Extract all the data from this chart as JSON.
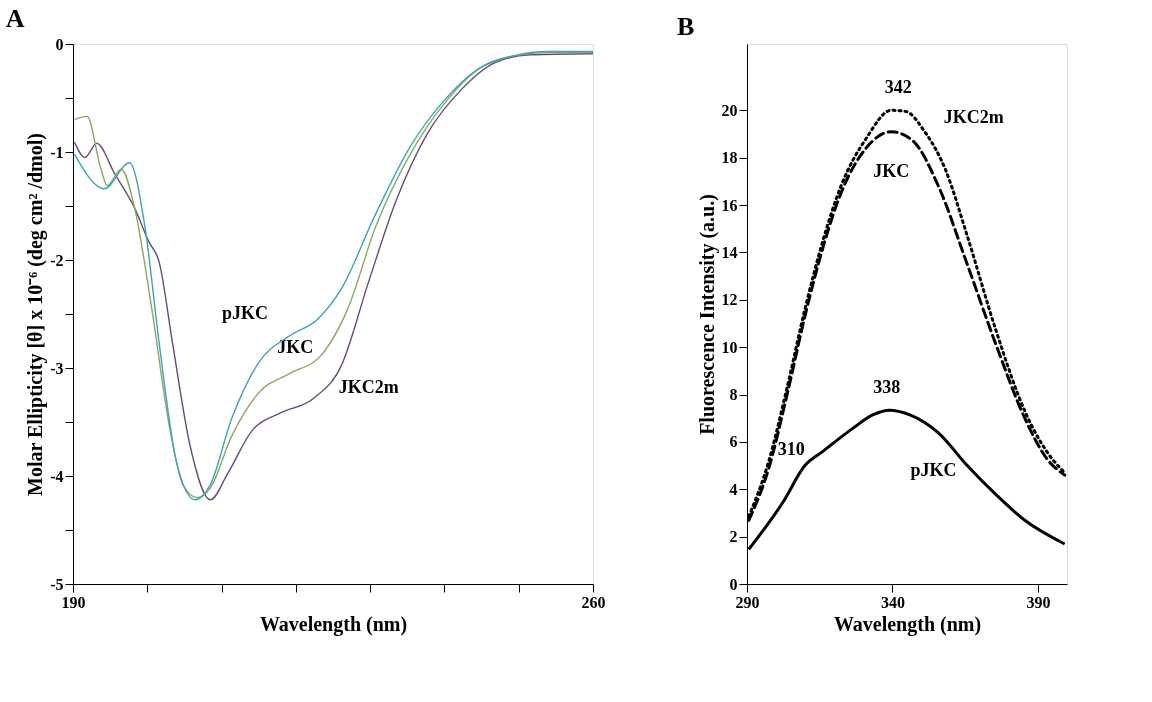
{
  "chart_data": [
    {
      "type": "line",
      "title": "A",
      "xlabel": "Wavelength (nm)",
      "ylabel": "Molar Ellipticity [θ] x 10⁻⁶ (deg cm² /dmol)",
      "xlim": [
        190,
        260
      ],
      "ylim": [
        -5,
        0
      ],
      "xticks": [
        190,
        {
          "value": 200,
          "label": null
        },
        {
          "value": 210,
          "label": null
        },
        {
          "value": 220,
          "label": null
        },
        {
          "value": 230,
          "label": null
        },
        {
          "value": 240,
          "label": null
        },
        {
          "value": 250,
          "label": null
        },
        260
      ],
      "yticks": [
        -5,
        {
          "value": -4.5,
          "label": null
        },
        -4,
        {
          "value": -3.5,
          "label": null
        },
        -3,
        {
          "value": -2.5,
          "label": null
        },
        -2,
        {
          "value": -1.5,
          "label": null
        },
        -1,
        {
          "value": -0.5,
          "label": null
        },
        0
      ],
      "grid": false,
      "legend": false,
      "line_style": "solid",
      "series": [
        {
          "name": "pJKC",
          "color": "#3aa6b5",
          "x": [
            190.2,
            194.2,
            197.6,
            199.7,
            201.6,
            203.9,
            206.4,
            208.5,
            211.3,
            215,
            219.2,
            222.9,
            226.1,
            230.7,
            235.4,
            240,
            244.6,
            249.3,
            253.9,
            260
          ],
          "values": [
            -1.02,
            -1.34,
            -1.1,
            -1.7,
            -2.77,
            -3.86,
            -4.22,
            -4.08,
            -3.48,
            -2.95,
            -2.7,
            -2.55,
            -2.27,
            -1.58,
            -0.95,
            -0.52,
            -0.23,
            -0.11,
            -0.07,
            -0.07
          ]
        },
        {
          "name": "JKC",
          "color": "#8aa860",
          "x": [
            190.2,
            191.9,
            193.7,
            194.6,
            196.5,
            198.3,
            200.6,
            203,
            204.8,
            206.7,
            208.5,
            211.3,
            215,
            219.2,
            223.3,
            227,
            230.7,
            235.4,
            240,
            244.6,
            249.3,
            253.9,
            260
          ],
          "values": [
            -0.7,
            -0.67,
            -1.14,
            -1.31,
            -1.16,
            -1.52,
            -2.45,
            -3.55,
            -4.08,
            -4.2,
            -4.11,
            -3.64,
            -3.23,
            -3.05,
            -2.89,
            -2.45,
            -1.7,
            -1.02,
            -0.55,
            -0.23,
            -0.11,
            -0.08,
            -0.08
          ]
        },
        {
          "name": "JKC2m",
          "color": "#6a4a7a",
          "x": [
            190.2,
            191.6,
            193.2,
            195.6,
            198.3,
            200.2,
            201.6,
            203.4,
            205.7,
            208.5,
            210.8,
            214.1,
            217.8,
            222.4,
            226.1,
            229.8,
            233.5,
            237.7,
            242.3,
            246.9,
            251.6,
            260
          ],
          "values": [
            -0.91,
            -1.05,
            -0.92,
            -1.2,
            -1.52,
            -1.83,
            -2.02,
            -2.77,
            -3.7,
            -4.22,
            -3.98,
            -3.58,
            -3.42,
            -3.28,
            -2.98,
            -2.2,
            -1.45,
            -0.83,
            -0.42,
            -0.17,
            -0.1,
            -0.09
          ]
        }
      ]
    },
    {
      "type": "line",
      "title": "B",
      "xlabel": "Wavelength (nm)",
      "ylabel": "Fluorescence Intensity (a.u.)",
      "xlim": [
        290,
        400
      ],
      "ylim": [
        0,
        22.8
      ],
      "xticks": [
        290,
        340,
        390
      ],
      "yticks": [
        0,
        2,
        4,
        6,
        8,
        10,
        12,
        14,
        16,
        18,
        20
      ],
      "grid": false,
      "legend": false,
      "annotations": [
        {
          "text": "342",
          "x": 342,
          "y": 20.0
        },
        {
          "text": "338",
          "x": 338,
          "y": 7.34
        },
        {
          "text": "310",
          "x": 310,
          "y": 5.0
        }
      ],
      "series": [
        {
          "name": "JKC2m",
          "color": "#000000",
          "line_style": "dotted",
          "x": [
            290.6,
            297.4,
            303.6,
            309.9,
            316.1,
            322.3,
            330.9,
            339.6,
            344.6,
            350.8,
            358.2,
            365.7,
            375.6,
            385.5,
            393,
            399.2
          ],
          "values": [
            2.85,
            5.15,
            8.2,
            11.6,
            14.5,
            16.8,
            18.8,
            20.0,
            19.95,
            19.15,
            17.5,
            14.7,
            10.7,
            7.3,
            5.6,
            4.7
          ]
        },
        {
          "name": "JKC",
          "color": "#000000",
          "line_style": "dashed",
          "x": [
            290.6,
            297.4,
            303.6,
            309.9,
            316.1,
            322.3,
            330.9,
            339.6,
            347.1,
            355.8,
            365.7,
            375.6,
            385.5,
            393,
            399.2
          ],
          "values": [
            2.69,
            4.85,
            7.9,
            11.3,
            14.2,
            16.5,
            18.4,
            19.1,
            18.7,
            16.8,
            13.5,
            10.1,
            7.0,
            5.3,
            4.6
          ]
        },
        {
          "name": "pJKC",
          "color": "#000000",
          "line_style": "solid",
          "x": [
            290.6,
            302.4,
            309.9,
            316.1,
            326,
            333.4,
            339,
            345.8,
            355.8,
            365.7,
            375.6,
            385.5,
            399.2
          ],
          "values": [
            1.46,
            3.46,
            5.0,
            5.6,
            6.54,
            7.15,
            7.34,
            7.15,
            6.38,
            5.0,
            3.77,
            2.69,
            1.69
          ]
        }
      ]
    }
  ]
}
